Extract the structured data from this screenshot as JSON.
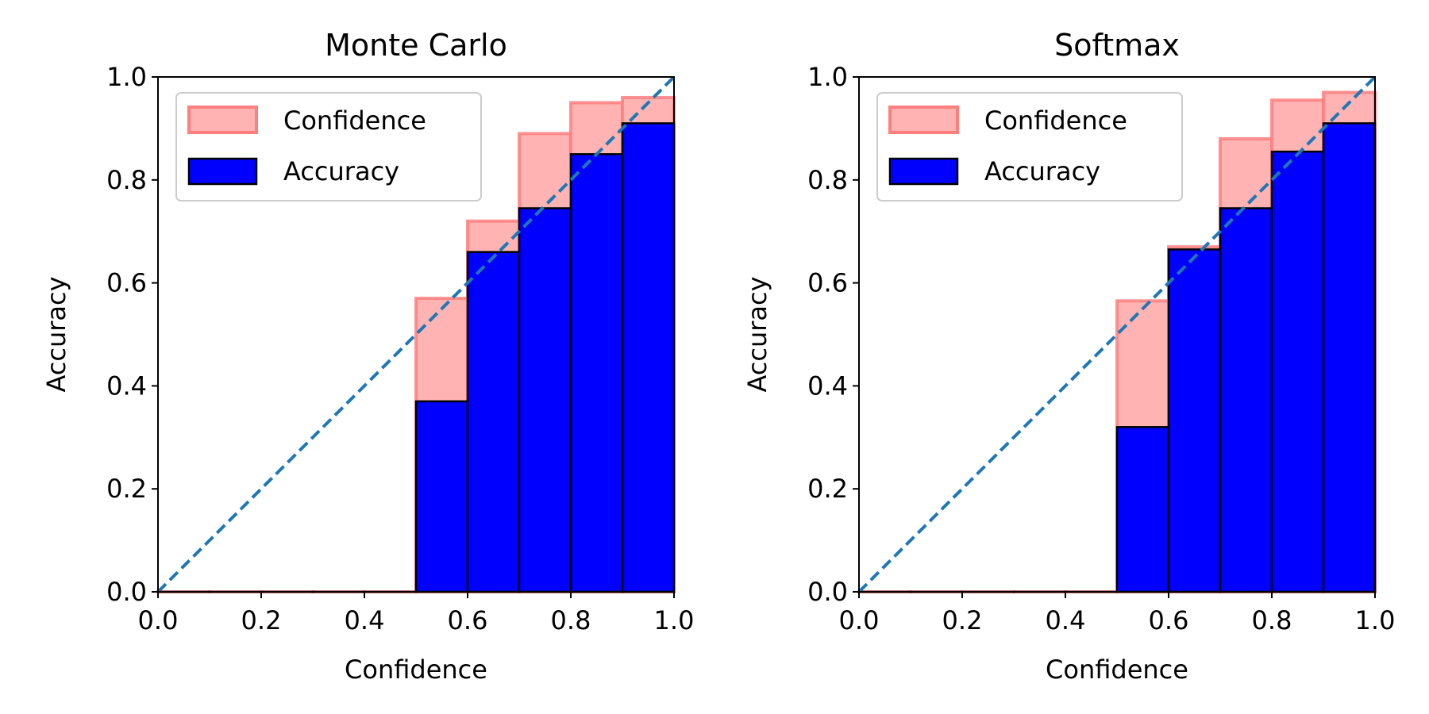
{
  "chart_data": [
    {
      "type": "bar",
      "title": "Monte Carlo",
      "xlabel": "Confidence",
      "ylabel": "Accuracy",
      "xlim": [
        0.0,
        1.0
      ],
      "ylim": [
        0.0,
        1.0
      ],
      "xticks": [
        "0.0",
        "0.2",
        "0.4",
        "0.6",
        "0.8",
        "1.0"
      ],
      "yticks": [
        "0.0",
        "0.2",
        "0.4",
        "0.6",
        "0.8",
        "1.0"
      ],
      "bin_edges": [
        0.0,
        0.1,
        0.2,
        0.3,
        0.4,
        0.5,
        0.6,
        0.7,
        0.8,
        0.9,
        1.0
      ],
      "series": [
        {
          "name": "Confidence",
          "values": [
            0,
            0,
            0,
            0,
            0,
            0.57,
            0.72,
            0.89,
            0.95,
            0.96
          ]
        },
        {
          "name": "Accuracy",
          "values": [
            0,
            0,
            0,
            0,
            0,
            0.37,
            0.66,
            0.745,
            0.85,
            0.91
          ]
        }
      ],
      "reference_line": {
        "from": [
          0,
          0
        ],
        "to": [
          1,
          1
        ],
        "style": "dashed"
      },
      "legend_position": "top-left",
      "colors": {
        "confidence_fill": "#ffb3b3",
        "confidence_edge": "#ff7f7f",
        "accuracy": "#0000ff",
        "diagonal": "#1f77b4"
      }
    },
    {
      "type": "bar",
      "title": "Softmax",
      "xlabel": "Confidence",
      "ylabel": "Accuracy",
      "xlim": [
        0.0,
        1.0
      ],
      "ylim": [
        0.0,
        1.0
      ],
      "xticks": [
        "0.0",
        "0.2",
        "0.4",
        "0.6",
        "0.8",
        "1.0"
      ],
      "yticks": [
        "0.0",
        "0.2",
        "0.4",
        "0.6",
        "0.8",
        "1.0"
      ],
      "bin_edges": [
        0.0,
        0.1,
        0.2,
        0.3,
        0.4,
        0.5,
        0.6,
        0.7,
        0.8,
        0.9,
        1.0
      ],
      "series": [
        {
          "name": "Confidence",
          "values": [
            0,
            0,
            0,
            0,
            0,
            0.565,
            0.67,
            0.88,
            0.955,
            0.97
          ]
        },
        {
          "name": "Accuracy",
          "values": [
            0,
            0,
            0,
            0,
            0,
            0.32,
            0.665,
            0.745,
            0.855,
            0.91
          ]
        }
      ],
      "reference_line": {
        "from": [
          0,
          0
        ],
        "to": [
          1,
          1
        ],
        "style": "dashed"
      },
      "legend_position": "top-left",
      "colors": {
        "confidence_fill": "#ffb3b3",
        "confidence_edge": "#ff7f7f",
        "accuracy": "#0000ff",
        "diagonal": "#1f77b4"
      }
    }
  ]
}
